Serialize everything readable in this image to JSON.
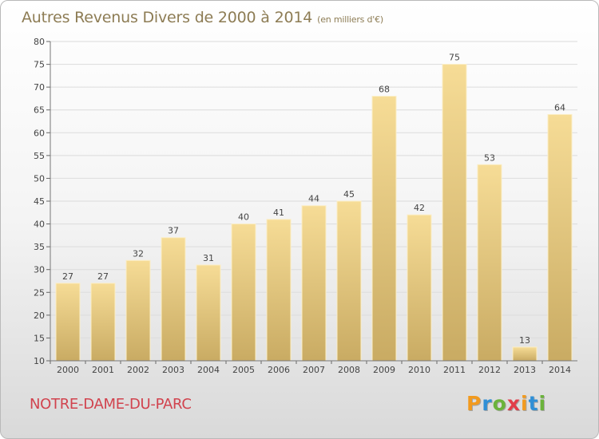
{
  "chart_data": {
    "type": "bar",
    "title": "Autres Revenus Divers de 2000 à 2014",
    "subtitle": "(en milliers d'€)",
    "categories": [
      "2000",
      "2001",
      "2002",
      "2003",
      "2004",
      "2005",
      "2006",
      "2007",
      "2008",
      "2009",
      "2010",
      "2011",
      "2012",
      "2013",
      "2014"
    ],
    "values": [
      27,
      27,
      32,
      37,
      31,
      40,
      41,
      44,
      45,
      68,
      42,
      75,
      53,
      13,
      64
    ],
    "data_labels": [
      "27",
      "27",
      "32",
      "37",
      "31",
      "40",
      "41",
      "44",
      "45",
      "68",
      "42",
      "75",
      "53",
      "13",
      "64"
    ],
    "ylim": [
      10,
      80
    ],
    "yticks": [
      10,
      15,
      20,
      25,
      30,
      35,
      40,
      45,
      50,
      55,
      60,
      65,
      70,
      75,
      80
    ],
    "ytick_labels": [
      "10",
      "15",
      "20",
      "25",
      "30",
      "35",
      "40",
      "45",
      "50",
      "55",
      "60",
      "65",
      "70",
      "75",
      "80"
    ],
    "grid": true,
    "bar_color": "#e9cf84"
  },
  "footer": {
    "commune": "NOTRE-DAME-DU-PARC",
    "logo_letters": [
      "P",
      "r",
      "o",
      "x",
      "i",
      "t",
      "i"
    ],
    "logo_colors": [
      "#f29a1e",
      "#2f8fd6",
      "#6bb33b",
      "#e23d49",
      "#f29a1e",
      "#2f8fd6",
      "#6bb33b"
    ]
  }
}
